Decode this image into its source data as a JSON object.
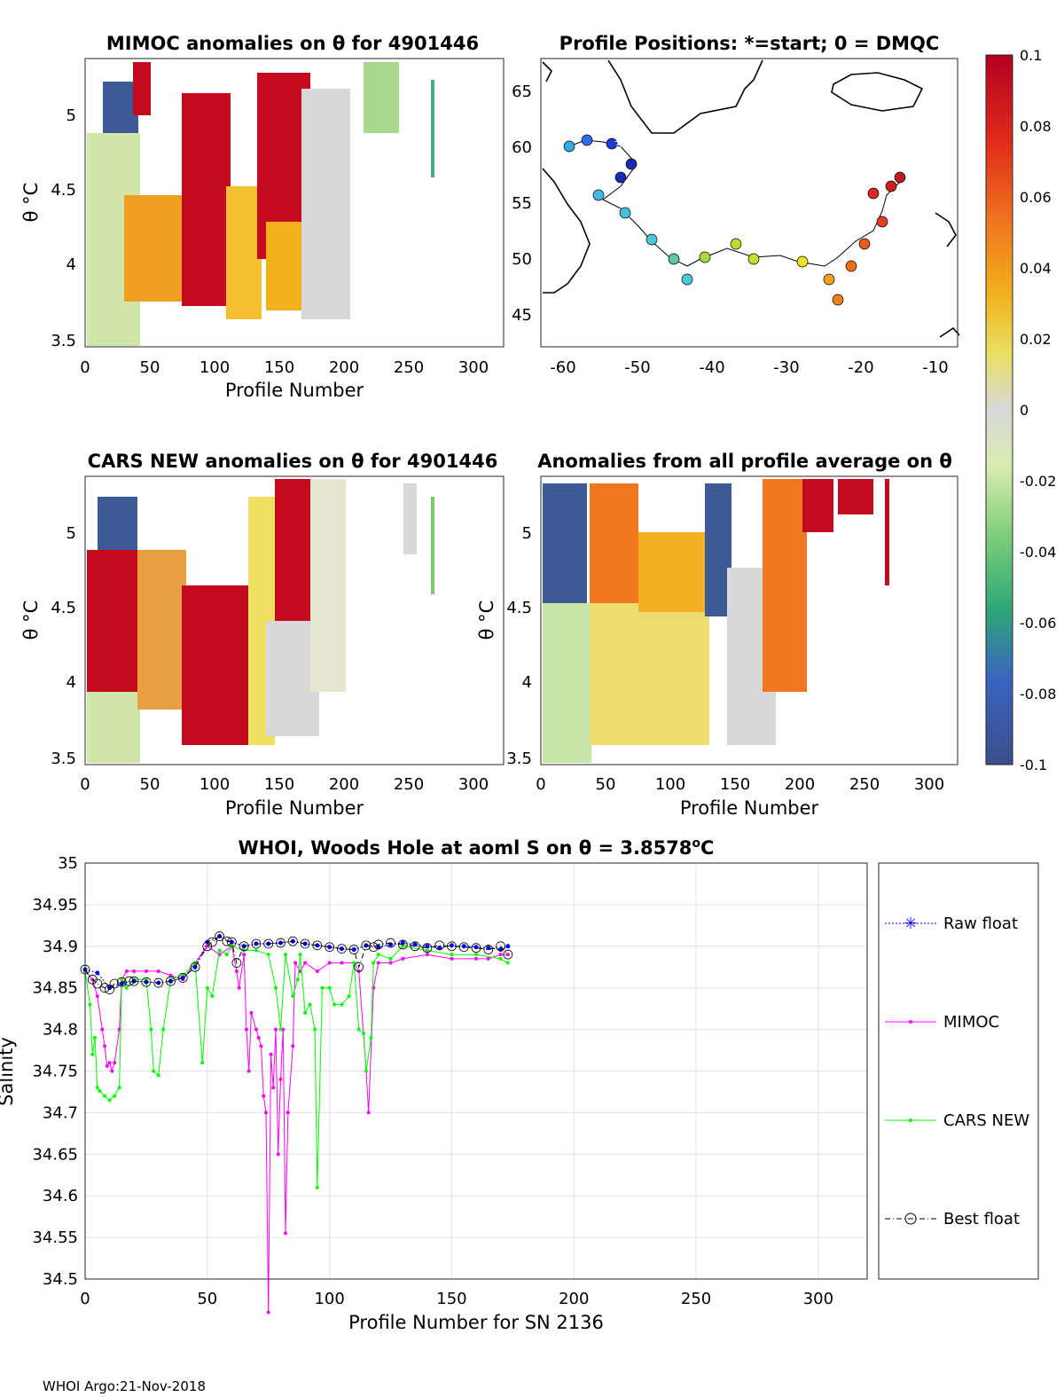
{
  "panels": {
    "mimoc": {
      "title": "MIMOC anomalies on θ  for 4901446",
      "ylabel": "θ °C",
      "xlabel": "Profile Number",
      "xticks": [
        "0",
        "50",
        "100",
        "150",
        "200",
        "250",
        "300"
      ],
      "yticks": [
        "3.5",
        "4",
        "4.5",
        "5"
      ]
    },
    "positions": {
      "title": "Profile Positions: *=start; 0 = DMQC",
      "xticks": [
        "-60",
        "-50",
        "-40",
        "-30",
        "-20",
        "-10"
      ],
      "yticks": [
        "45",
        "50",
        "55",
        "60",
        "65"
      ]
    },
    "cars": {
      "title": "CARS NEW anomalies on θ for 4901446",
      "ylabel": "θ °C",
      "xlabel": "Profile Number",
      "xticks": [
        "0",
        "50",
        "100",
        "150",
        "200",
        "250",
        "300"
      ],
      "yticks": [
        "3.5",
        "4",
        "4.5",
        "5"
      ]
    },
    "allavg": {
      "title": "Anomalies from all profile average on θ",
      "ylabel": "θ °C",
      "xlabel": "Profile Number",
      "xticks": [
        "0",
        "50",
        "100",
        "150",
        "200",
        "250",
        "300"
      ],
      "yticks": [
        "3.5",
        "4",
        "4.5",
        "5"
      ]
    }
  },
  "colorbar": {
    "ticks": [
      "0.1",
      "0.08",
      "0.06",
      "0.04",
      "0.02",
      "0",
      "-0.02",
      "-0.04",
      "-0.06",
      "-0.08",
      "-0.1"
    ]
  },
  "chart_data": {
    "type": "line",
    "title_prefix": "WHOI, Woods Hole at aoml S on θ = 3.8578",
    "title_unit": "o",
    "title_suffix": "C",
    "xlabel": "Profile Number for SN 2136",
    "ylabel": "Salinity",
    "xlim": [
      0,
      320
    ],
    "ylim": [
      34.5,
      35
    ],
    "xticks": [
      "0",
      "50",
      "100",
      "150",
      "200",
      "250",
      "300"
    ],
    "yticks": [
      "34.5",
      "34.55",
      "34.6",
      "34.65",
      "34.7",
      "34.75",
      "34.8",
      "34.85",
      "34.9",
      "34.95",
      "35"
    ],
    "grid": true,
    "legend_position": "right",
    "series": [
      {
        "name": "Raw float",
        "color": "#0000ff",
        "x": [
          0,
          5,
          10,
          15,
          20,
          25,
          30,
          35,
          40,
          45,
          50,
          55,
          60,
          65,
          70,
          75,
          80,
          85,
          90,
          95,
          100,
          105,
          110,
          115,
          120,
          125,
          130,
          135,
          140,
          145,
          150,
          155,
          160,
          165,
          170,
          173
        ],
        "values": [
          34.872,
          34.868,
          34.85,
          34.855,
          34.858,
          34.857,
          34.856,
          34.858,
          34.862,
          34.875,
          34.905,
          34.912,
          34.905,
          34.9,
          34.903,
          34.903,
          34.904,
          34.906,
          34.903,
          34.901,
          34.899,
          34.897,
          34.896,
          34.901,
          34.899,
          34.902,
          34.904,
          34.902,
          34.9,
          34.898,
          34.901,
          34.9,
          34.899,
          34.898,
          34.896,
          34.9
        ]
      },
      {
        "name": "MIMOC",
        "color": "#ff00ff",
        "x": [
          0,
          3,
          5,
          7,
          8,
          9,
          10,
          11,
          12,
          14,
          15,
          17,
          20,
          25,
          30,
          35,
          40,
          45,
          50,
          55,
          60,
          62,
          63,
          65,
          66,
          67,
          68,
          70,
          71,
          72,
          73,
          74,
          75,
          76,
          77,
          78,
          79,
          80,
          81,
          82,
          83,
          85,
          86,
          88,
          90,
          95,
          100,
          105,
          110,
          112,
          115,
          116,
          118,
          120,
          125,
          130,
          140,
          150,
          160,
          165,
          170,
          173
        ],
        "values": [
          34.87,
          34.86,
          34.84,
          34.8,
          34.78,
          34.756,
          34.76,
          34.75,
          34.76,
          34.8,
          34.86,
          34.87,
          34.87,
          34.87,
          34.87,
          34.865,
          34.86,
          34.88,
          34.9,
          34.89,
          34.9,
          34.87,
          34.85,
          34.89,
          34.8,
          34.75,
          34.82,
          34.8,
          34.79,
          34.78,
          34.72,
          34.7,
          34.46,
          34.77,
          34.73,
          34.8,
          34.65,
          34.74,
          34.8,
          34.555,
          34.7,
          34.78,
          34.88,
          34.87,
          34.88,
          34.87,
          34.88,
          34.88,
          34.88,
          34.87,
          34.75,
          34.7,
          34.85,
          34.88,
          34.88,
          34.885,
          34.89,
          34.885,
          34.885,
          34.885,
          34.89,
          34.89
        ]
      },
      {
        "name": "CARS NEW",
        "color": "#00ff00",
        "x": [
          0,
          2,
          3,
          4,
          5,
          6,
          8,
          10,
          12,
          14,
          15,
          17,
          20,
          25,
          27,
          28,
          30,
          32,
          35,
          40,
          45,
          48,
          50,
          52,
          55,
          58,
          60,
          65,
          70,
          75,
          78,
          80,
          82,
          85,
          87,
          88,
          90,
          92,
          94,
          95,
          97,
          100,
          102,
          105,
          108,
          110,
          112,
          114,
          115,
          117,
          118,
          120,
          125,
          130,
          140,
          150,
          160,
          170,
          173
        ],
        "values": [
          34.87,
          34.83,
          34.77,
          34.79,
          34.73,
          34.726,
          34.72,
          34.715,
          34.72,
          34.73,
          34.86,
          34.85,
          34.86,
          34.86,
          34.8,
          34.75,
          34.745,
          34.8,
          34.86,
          34.865,
          34.88,
          34.76,
          34.85,
          34.84,
          34.895,
          34.89,
          34.9,
          34.895,
          34.895,
          34.89,
          34.85,
          34.8,
          34.89,
          34.84,
          34.86,
          34.89,
          34.82,
          34.83,
          34.8,
          34.61,
          34.85,
          34.85,
          34.83,
          34.83,
          34.84,
          34.88,
          34.8,
          34.795,
          34.75,
          34.79,
          34.88,
          34.89,
          34.885,
          34.9,
          34.895,
          34.89,
          34.89,
          34.885,
          34.88
        ]
      },
      {
        "name": "Best float",
        "color": "#000000",
        "x": [
          0,
          3,
          5,
          8,
          10,
          12,
          15,
          18,
          20,
          25,
          30,
          35,
          40,
          45,
          50,
          52,
          55,
          58,
          60,
          62,
          65,
          70,
          75,
          80,
          85,
          90,
          95,
          100,
          105,
          110,
          112,
          115,
          118,
          120,
          125,
          130,
          135,
          140,
          145,
          150,
          155,
          160,
          165,
          170,
          173
        ],
        "values": [
          34.872,
          34.86,
          34.855,
          34.85,
          34.848,
          34.855,
          34.857,
          34.858,
          34.858,
          34.857,
          34.856,
          34.858,
          34.862,
          34.875,
          34.9,
          34.905,
          34.912,
          34.906,
          34.905,
          34.88,
          34.9,
          34.903,
          34.903,
          34.904,
          34.906,
          34.903,
          34.901,
          34.899,
          34.897,
          34.896,
          34.875,
          34.901,
          34.899,
          34.902,
          34.904,
          34.902,
          34.9,
          34.898,
          34.901,
          34.9,
          34.899,
          34.898,
          34.896,
          34.9,
          34.89
        ]
      }
    ]
  },
  "footer": "WHOI Argo:21-Nov-2018"
}
